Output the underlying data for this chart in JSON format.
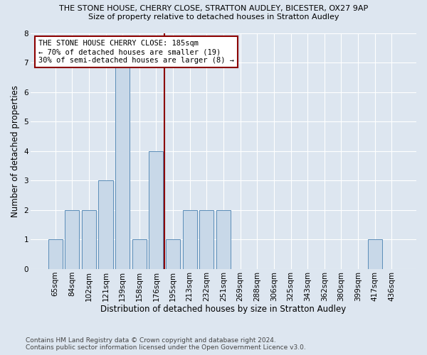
{
  "title": "THE STONE HOUSE, CHERRY CLOSE, STRATTON AUDLEY, BICESTER, OX27 9AP",
  "subtitle": "Size of property relative to detached houses in Stratton Audley",
  "xlabel": "Distribution of detached houses by size in Stratton Audley",
  "ylabel": "Number of detached properties",
  "categories": [
    "65sqm",
    "84sqm",
    "102sqm",
    "121sqm",
    "139sqm",
    "158sqm",
    "176sqm",
    "195sqm",
    "213sqm",
    "232sqm",
    "251sqm",
    "269sqm",
    "288sqm",
    "306sqm",
    "325sqm",
    "343sqm",
    "362sqm",
    "380sqm",
    "399sqm",
    "417sqm",
    "436sqm"
  ],
  "values": [
    1,
    2,
    2,
    3,
    7,
    1,
    4,
    1,
    2,
    2,
    2,
    0,
    0,
    0,
    0,
    0,
    0,
    0,
    0,
    1,
    0
  ],
  "bar_color": "#c8d8e8",
  "bar_edge_color": "#5b8db8",
  "vline_color": "#8b0000",
  "annotation_title": "THE STONE HOUSE CHERRY CLOSE: 185sqm",
  "annotation_line1": "← 70% of detached houses are smaller (19)",
  "annotation_line2": "30% of semi-detached houses are larger (8) →",
  "annotation_box_color": "#8b0000",
  "ylim": [
    0,
    8
  ],
  "yticks": [
    0,
    1,
    2,
    3,
    4,
    5,
    6,
    7,
    8
  ],
  "footer": "Contains HM Land Registry data © Crown copyright and database right 2024.\nContains public sector information licensed under the Open Government Licence v3.0.",
  "bg_color": "#dde6f0",
  "plot_bg_color": "#dde6f0",
  "title_fontsize": 8.0,
  "subtitle_fontsize": 8.0,
  "ylabel_fontsize": 8.5,
  "xlabel_fontsize": 8.5,
  "tick_fontsize": 7.5,
  "ann_fontsize": 7.5,
  "footer_fontsize": 6.5
}
